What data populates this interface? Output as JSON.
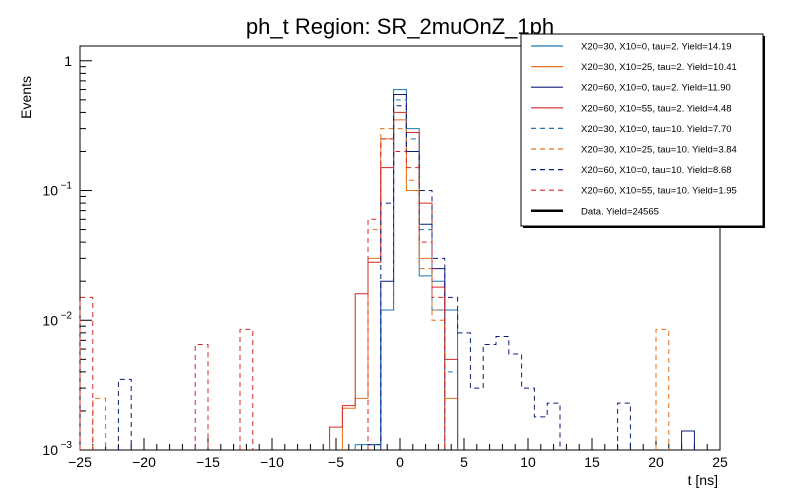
{
  "chart_data": {
    "type": "line",
    "title": "ph_t Region: SR_2muOnZ_1ph",
    "xlabel": "t [ns]",
    "ylabel": "Events",
    "xlim": [
      -25,
      25
    ],
    "ylim": [
      0.001,
      1.3
    ],
    "log_y": true,
    "grid": false,
    "legend_position": "top-right",
    "x_ticks": [
      -25,
      -20,
      -15,
      -10,
      -5,
      0,
      5,
      10,
      15,
      20,
      25
    ],
    "x_tick_labels": [
      "−25",
      "−20",
      "−15",
      "−10",
      "−5",
      "0",
      "5",
      "10",
      "15",
      "20",
      "25"
    ],
    "y_ticks": [
      {
        "value": 0.001,
        "base": "10",
        "exp": "−3"
      },
      {
        "value": 0.01,
        "base": "10",
        "exp": "−2"
      },
      {
        "value": 0.1,
        "base": "10",
        "exp": "−1"
      },
      {
        "value": 1,
        "base": "1",
        "exp": ""
      }
    ],
    "series": [
      {
        "name": "X20=30, X10=0, tau=2. Yield=14.19",
        "color": "#1f77b4",
        "dashed": false,
        "points": [
          [
            -3,
            0.0011
          ],
          [
            -2,
            0.0011
          ],
          [
            -1,
            0.012
          ],
          [
            0,
            0.6
          ],
          [
            1,
            0.3
          ],
          [
            2,
            0.022
          ],
          [
            3,
            0.02
          ],
          [
            4,
            0.012
          ]
        ]
      },
      {
        "name": "X20=30, X10=25, tau=2. Yield=10.41",
        "color": "#e8701a",
        "dashed": false,
        "points": [
          [
            -4,
            0.0021
          ],
          [
            -3,
            0.0025
          ],
          [
            -2,
            0.03
          ],
          [
            -1,
            0.25
          ],
          [
            0,
            0.35
          ],
          [
            1,
            0.1
          ],
          [
            2,
            0.03
          ],
          [
            3,
            0.012
          ],
          [
            4,
            0.0025
          ]
        ]
      },
      {
        "name": "X20=60, X10=0, tau=2. Yield=11.90",
        "color": "#0a1d7a",
        "dashed": false,
        "points": [
          [
            -2,
            0.0011
          ],
          [
            -1,
            0.02
          ],
          [
            0,
            0.55
          ],
          [
            1,
            0.2
          ],
          [
            2,
            0.055
          ],
          [
            3,
            0.025
          ],
          [
            22.5,
            0.0014
          ]
        ]
      },
      {
        "name": "X20=60, X10=55, tau=2. Yield=4.48",
        "color": "#d62728",
        "dashed": false,
        "points": [
          [
            -5,
            0.0015
          ],
          [
            -4,
            0.0022
          ],
          [
            -3,
            0.016
          ],
          [
            -2,
            0.028
          ],
          [
            -1,
            0.15
          ],
          [
            0,
            0.4
          ],
          [
            1,
            0.28
          ],
          [
            2,
            0.08
          ],
          [
            3,
            0.018
          ],
          [
            4,
            0.005
          ]
        ]
      },
      {
        "name": "X20=30, X10=0, tau=10. Yield=7.70",
        "color": "#1f77b4",
        "dashed": true,
        "points": [
          [
            -2,
            0.0011
          ],
          [
            -1,
            0.012
          ],
          [
            0,
            0.5
          ],
          [
            1,
            0.25
          ],
          [
            2,
            0.05
          ],
          [
            3,
            0.012
          ],
          [
            4,
            0.004
          ]
        ]
      },
      {
        "name": "X20=30, X10=25, tau=10. Yield=3.84",
        "color": "#e8701a",
        "dashed": true,
        "points": [
          [
            -23.5,
            0.0025
          ],
          [
            -2,
            0.05
          ],
          [
            -1,
            0.3
          ],
          [
            0,
            0.3
          ],
          [
            1,
            0.12
          ],
          [
            2,
            0.025
          ],
          [
            3,
            0.01
          ],
          [
            20.5,
            0.0085
          ]
        ]
      },
      {
        "name": "X20=60, X10=0, tau=10. Yield=8.68",
        "color": "#0a1d7a",
        "dashed": true,
        "points": [
          [
            -21.5,
            0.0035
          ],
          [
            -1,
            0.08
          ],
          [
            0,
            0.45
          ],
          [
            1,
            0.2
          ],
          [
            2,
            0.1
          ],
          [
            3,
            0.03
          ],
          [
            4,
            0.015
          ],
          [
            5,
            0.008
          ],
          [
            6,
            0.003
          ],
          [
            7,
            0.0065
          ],
          [
            8,
            0.0075
          ],
          [
            9,
            0.0055
          ],
          [
            10,
            0.003
          ],
          [
            11,
            0.0018
          ],
          [
            12,
            0.0023
          ],
          [
            17.5,
            0.0023
          ]
        ]
      },
      {
        "name": "X20=60, X10=55, tau=10. Yield=1.95",
        "color": "#d62728",
        "dashed": true,
        "points": [
          [
            -24.5,
            0.015
          ],
          [
            -15.5,
            0.0065
          ],
          [
            -12,
            0.0085
          ],
          [
            -2,
            0.06
          ],
          [
            -1,
            0.25
          ],
          [
            0,
            0.2
          ],
          [
            1,
            0.15
          ],
          [
            2,
            0.04
          ],
          [
            3,
            0.015
          ]
        ]
      },
      {
        "name": "Data. Yield=24565",
        "color": "#000000",
        "dashed": false,
        "thick": true,
        "points": []
      }
    ]
  }
}
